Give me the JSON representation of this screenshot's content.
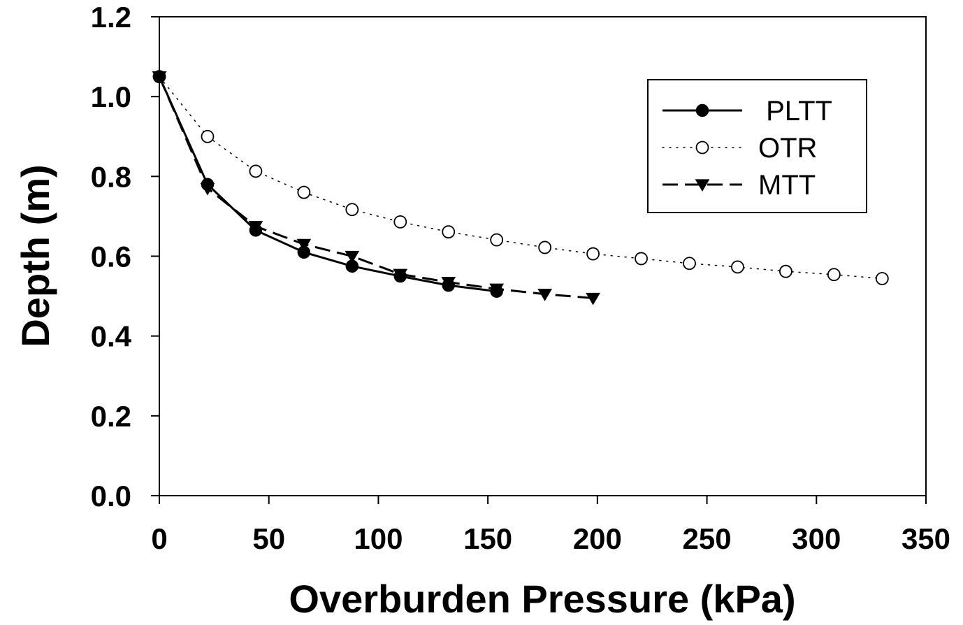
{
  "chart_data": {
    "type": "line",
    "title": "",
    "xlabel": "Overburden Pressure (kPa)",
    "ylabel": "Depth (m)",
    "xlim": [
      0,
      350
    ],
    "ylim": [
      0,
      1.2
    ],
    "xticks": [
      0,
      50,
      100,
      150,
      200,
      250,
      300,
      350
    ],
    "xtick_labels": [
      "0",
      "50",
      "100",
      "150",
      "200",
      "250",
      "300",
      "350"
    ],
    "yticks": [
      0,
      0.2,
      0.4,
      0.6,
      0.8,
      1.0,
      1.2
    ],
    "ytick_labels": [
      "0.0",
      "0.2",
      "0.4",
      "0.6",
      "0.8",
      "1.0",
      "1.2"
    ],
    "grid": false,
    "legend_position": "top-right",
    "series": [
      {
        "name": " PLTT",
        "line_style": "solid",
        "marker": "filled-circle",
        "color": "#000000",
        "x": [
          0,
          22,
          44,
          66,
          88,
          110,
          132,
          154
        ],
        "y": [
          1.05,
          0.78,
          0.665,
          0.61,
          0.575,
          0.55,
          0.527,
          0.512
        ]
      },
      {
        "name": "OTR",
        "line_style": "dotted",
        "marker": "open-circle",
        "color": "#000000",
        "x": [
          0,
          22,
          44,
          66,
          88,
          110,
          132,
          154,
          176,
          198,
          220,
          242,
          264,
          286,
          308,
          330
        ],
        "y": [
          1.05,
          0.9,
          0.813,
          0.76,
          0.717,
          0.686,
          0.661,
          0.641,
          0.622,
          0.606,
          0.594,
          0.582,
          0.573,
          0.562,
          0.554,
          0.544
        ]
      },
      {
        "name": "MTT",
        "line_style": "dashed",
        "marker": "filled-triangle-down",
        "color": "#000000",
        "x": [
          0,
          22,
          44,
          66,
          88,
          110,
          132,
          154,
          176,
          198
        ],
        "y": [
          1.05,
          0.77,
          0.675,
          0.63,
          0.6,
          0.555,
          0.535,
          0.518,
          0.505,
          0.495
        ]
      }
    ]
  }
}
